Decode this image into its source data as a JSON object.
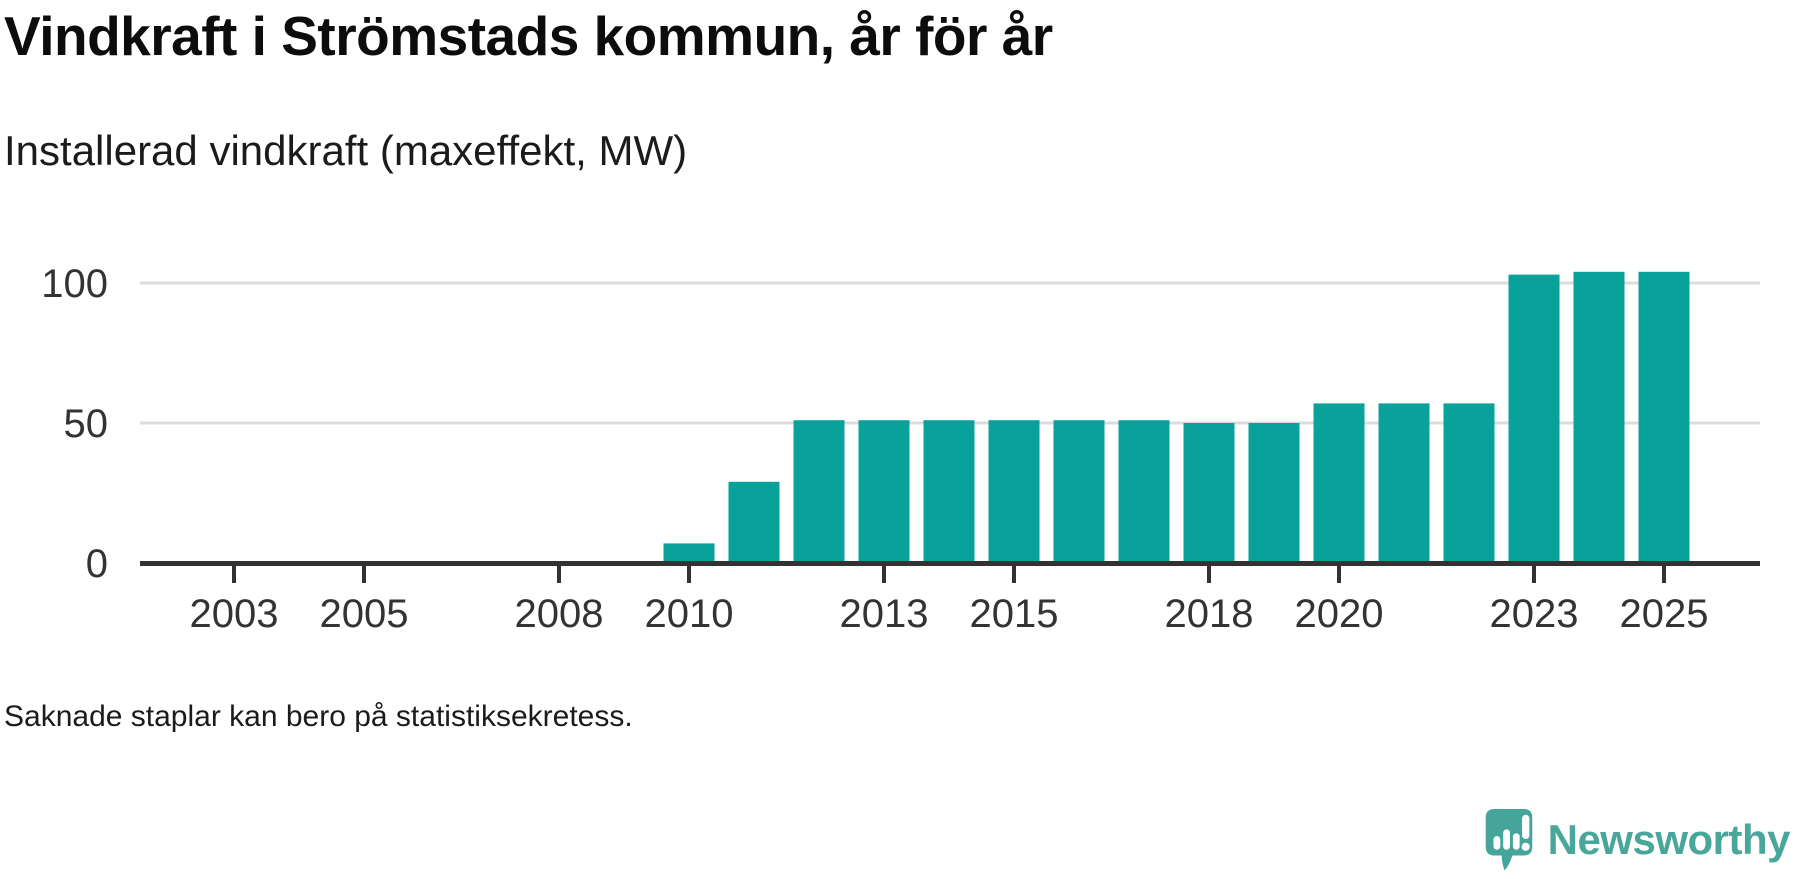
{
  "header": {
    "title": "Vindkraft i Strömstads kommun, år för år",
    "subtitle": "Installerad vindkraft (maxeffekt, MW)"
  },
  "chart_data": {
    "type": "bar",
    "title": "Vindkraft i Strömstads kommun, år för år",
    "subtitle": "Installerad vindkraft (maxeffekt, MW)",
    "unit": "MW",
    "categories": [
      2010,
      2011,
      2012,
      2013,
      2014,
      2015,
      2016,
      2017,
      2018,
      2019,
      2020,
      2021,
      2022,
      2023,
      2024,
      2025
    ],
    "values": [
      7,
      29,
      51,
      51,
      51,
      51,
      51,
      51,
      50,
      50,
      57,
      57,
      57,
      103,
      104,
      104
    ],
    "missing_categories": [
      2002,
      2003,
      2004,
      2005,
      2006,
      2007,
      2008,
      2009
    ],
    "xlabel": "",
    "ylabel": "",
    "x_domain": [
      2001.6,
      2026.4
    ],
    "ylim": [
      0,
      122
    ],
    "x_ticks": [
      2003,
      2005,
      2008,
      2010,
      2013,
      2015,
      2018,
      2020,
      2023,
      2025
    ],
    "y_ticks": [
      0,
      50,
      100
    ],
    "gridlines": [
      50,
      100
    ],
    "grid": true,
    "legend": "none",
    "bar_color": "#08a29b"
  },
  "footnote": {
    "text": "Saknade staplar kan bero på statistiksekretess."
  },
  "logo": {
    "brand": "Newsworthy",
    "icon": "speech-bubble-bar-chart-icon",
    "color": "#48a69b"
  },
  "colors": {
    "bar": "#08a29b",
    "axis": "#323232",
    "grid": "#dcdcdc",
    "title": "#0c0c0c",
    "text": "#333333",
    "background": "#ffffff",
    "logo": "#48a69b"
  }
}
